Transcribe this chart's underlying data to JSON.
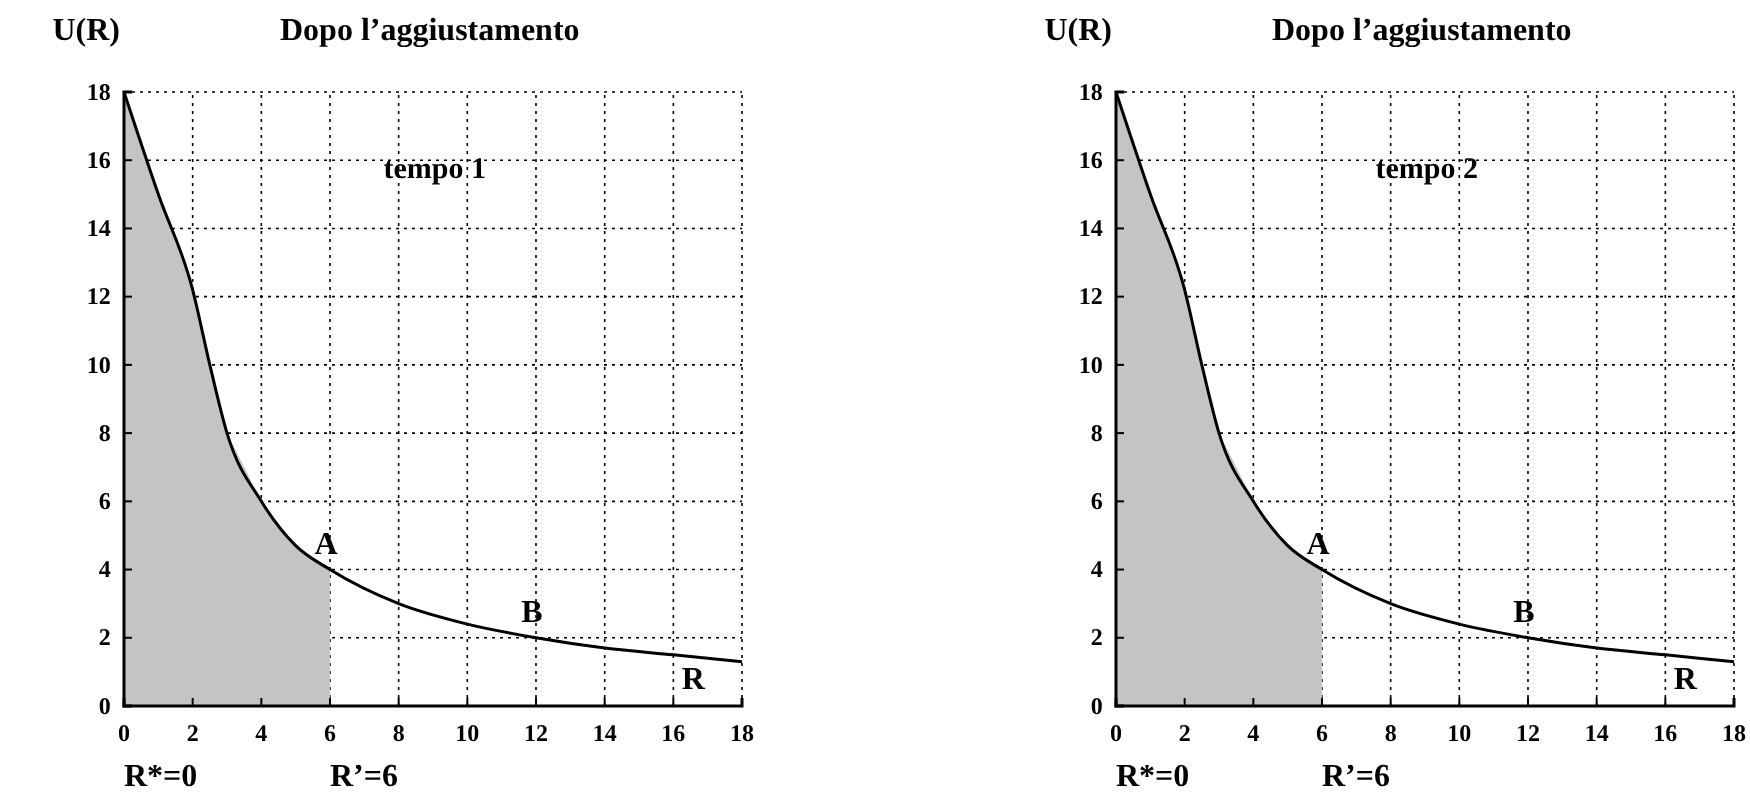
{
  "chart_data": [
    {
      "type": "line",
      "title": "Dopo l’aggiustamento",
      "ylabel": "U(R)",
      "xlim": [
        0,
        18
      ],
      "ylim": [
        0,
        18
      ],
      "xticks": [
        0,
        2,
        4,
        6,
        8,
        10,
        12,
        14,
        16,
        18
      ],
      "yticks": [
        0,
        2,
        4,
        6,
        8,
        10,
        12,
        14,
        16,
        18
      ],
      "grid": true,
      "line_style": "solid",
      "series": [
        {
          "type": "area",
          "color": "#c4c4c4",
          "x": [
            0,
            1,
            2,
            2.5,
            3,
            4,
            5,
            6
          ],
          "values": [
            18,
            15,
            12.2,
            10,
            8,
            6,
            4.7,
            4
          ]
        },
        {
          "type": "line",
          "color": "#000000",
          "x": [
            0,
            1,
            2,
            2.5,
            3,
            4,
            5,
            6,
            8,
            10,
            12,
            14,
            16,
            18
          ],
          "values": [
            18,
            15,
            12.2,
            10,
            8,
            6,
            4.7,
            4,
            3,
            2.4,
            2,
            1.7,
            1.5,
            1.3
          ]
        }
      ],
      "annotations": [
        "tempo 1",
        {
          "text": "A",
          "x": 6,
          "y": 4
        },
        {
          "text": "B",
          "x": 12,
          "y": 2
        },
        {
          "text": "R",
          "x": 16,
          "y": 1.5
        },
        {
          "text": "R*=0",
          "x": 0,
          "y": 0
        },
        {
          "text": "R’=6",
          "x": 6,
          "y": 0
        }
      ]
    },
    {
      "type": "line",
      "title": "Dopo l’aggiustamento",
      "ylabel": "U(R)",
      "xlim": [
        0,
        18
      ],
      "ylim": [
        0,
        18
      ],
      "xticks": [
        0,
        2,
        4,
        6,
        8,
        10,
        12,
        14,
        16,
        18
      ],
      "yticks": [
        0,
        2,
        4,
        6,
        8,
        10,
        12,
        14,
        16,
        18
      ],
      "grid": true,
      "line_style": "solid",
      "series": [
        {
          "type": "area",
          "color": "#c4c4c4",
          "x": [
            0,
            1,
            2,
            2.5,
            3,
            4,
            5,
            6
          ],
          "values": [
            18,
            15,
            12.2,
            10,
            8,
            6,
            4.7,
            4
          ]
        },
        {
          "type": "line",
          "color": "#000000",
          "x": [
            0,
            1,
            2,
            2.5,
            3,
            4,
            5,
            6,
            8,
            10,
            12,
            14,
            16,
            18
          ],
          "values": [
            18,
            15,
            12.2,
            10,
            8,
            6,
            4.7,
            4,
            3,
            2.4,
            2,
            1.7,
            1.5,
            1.3
          ]
        }
      ],
      "annotations": [
        "tempo 2",
        {
          "text": "A",
          "x": 6,
          "y": 4
        },
        {
          "text": "B",
          "x": 12,
          "y": 2
        },
        {
          "text": "R",
          "x": 16,
          "y": 1.5
        },
        {
          "text": "R*=0",
          "x": 0,
          "y": 0
        },
        {
          "text": "R’=6",
          "x": 6,
          "y": 0
        }
      ]
    }
  ]
}
